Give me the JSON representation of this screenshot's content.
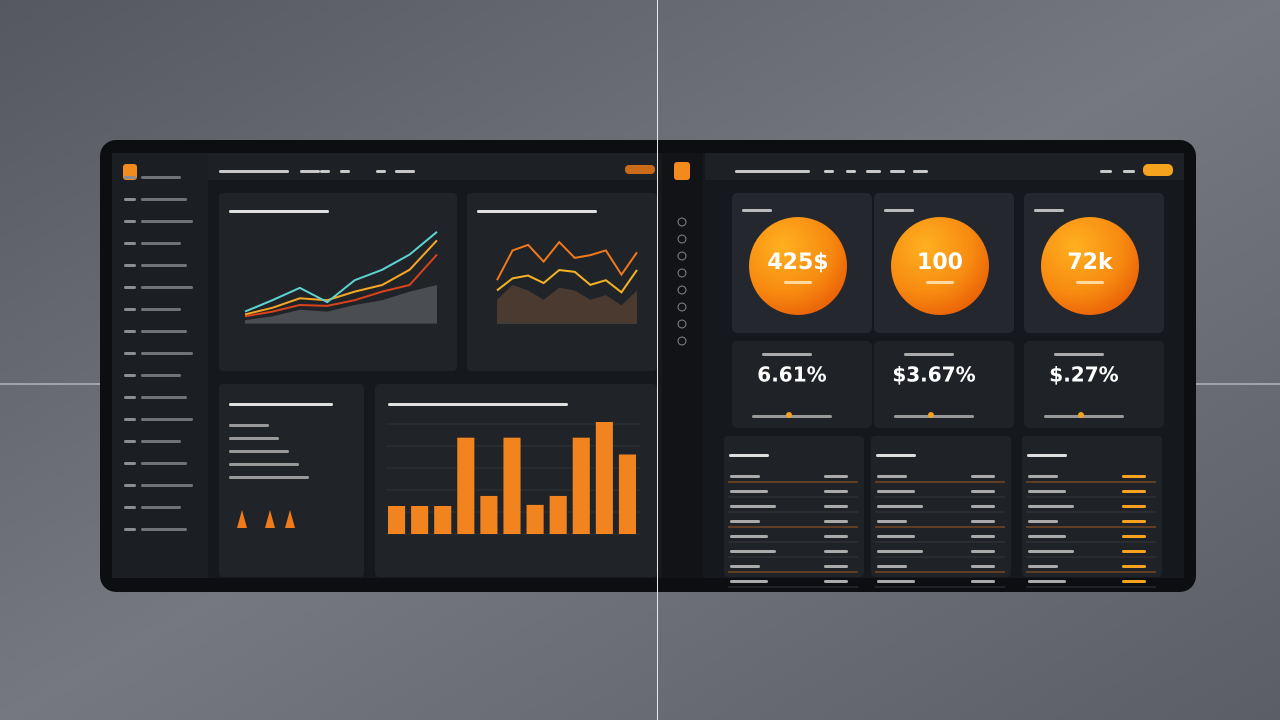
{
  "circle_values": [
    "425$",
    "100",
    "72k"
  ],
  "stat_values": [
    "6.61%",
    "$3.67%",
    "$.27%"
  ],
  "charts": [
    {
      "type": "line",
      "ylim": [
        0,
        100
      ],
      "series": [
        {
          "color": "#4a4d52",
          "area": true,
          "values": [
            3,
            7,
            14,
            12,
            19,
            24,
            33,
            40
          ]
        },
        {
          "color": "#d8431a",
          "values": [
            7,
            12,
            19,
            18,
            24,
            33,
            40,
            72
          ]
        },
        {
          "color": "#f5a623",
          "values": [
            9,
            16,
            26,
            24,
            33,
            40,
            56,
            87
          ]
        },
        {
          "color": "#5fd3d0",
          "values": [
            12,
            24,
            37,
            22,
            45,
            56,
            72,
            96
          ]
        }
      ]
    },
    {
      "type": "line",
      "ylim": [
        0,
        100
      ],
      "series": [
        {
          "color": "#4a3a30",
          "area": true,
          "values": [
            25,
            41,
            35,
            25,
            38,
            35,
            25,
            30,
            19,
            35
          ]
        },
        {
          "color": "#f5b323",
          "values": [
            35,
            48,
            51,
            43,
            57,
            55,
            41,
            46,
            33,
            57
          ]
        },
        {
          "color": "#f07a1a",
          "values": [
            46,
            78,
            84,
            66,
            87,
            70,
            73,
            78,
            52,
            76
          ]
        }
      ]
    },
    {
      "type": "bar",
      "ylim": [
        0,
        100
      ],
      "color": "#f2841f",
      "values": [
        25,
        25,
        25,
        86,
        34,
        86,
        26,
        34,
        86,
        100,
        71
      ]
    }
  ]
}
